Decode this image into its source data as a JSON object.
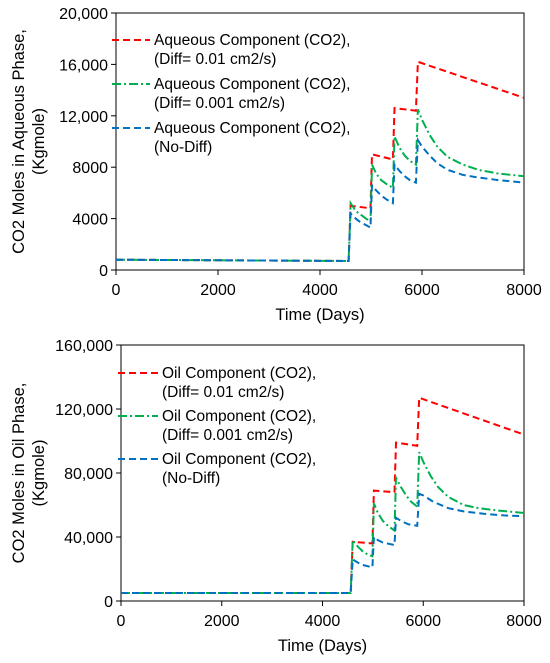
{
  "chart_data": [
    {
      "type": "line",
      "xlabel": "Time (Days)",
      "ylabel": [
        "CO2 Moles in Aqueous Phase,",
        "(Kgmole)"
      ],
      "xlim": [
        0,
        8000
      ],
      "ylim": [
        0,
        20000
      ],
      "xticks": [
        0,
        2000,
        4000,
        6000,
        8000
      ],
      "xtick_labels": [
        "0",
        "2000",
        "4000",
        "6000",
        "8000"
      ],
      "yticks": [
        0,
        4000,
        8000,
        12000,
        16000,
        20000
      ],
      "ytick_labels": [
        "0",
        "4000",
        "8000",
        "12,000",
        "16,000",
        "20,000"
      ],
      "grid": false,
      "legend_position": "top-center",
      "series": [
        {
          "name": [
            "Aqueous Component (CO2),",
            "(Diff= 0.01 cm2/s)"
          ],
          "color": "#ff0000",
          "points": [
            [
              0,
              800
            ],
            [
              4560,
              700
            ],
            [
              4600,
              5000
            ],
            [
              4990,
              4800
            ],
            [
              5020,
              9000
            ],
            [
              5430,
              8600
            ],
            [
              5460,
              12600
            ],
            [
              5880,
              12400
            ],
            [
              5920,
              16200
            ],
            [
              8000,
              13400
            ]
          ]
        },
        {
          "name": [
            "Aqueous Component (CO2),",
            "(Diff= 0.001 cm2/s)"
          ],
          "color": "#00b050",
          "points": [
            [
              0,
              800
            ],
            [
              4560,
              700
            ],
            [
              4600,
              5200
            ],
            [
              4700,
              4600
            ],
            [
              4800,
              4300
            ],
            [
              4900,
              4000
            ],
            [
              4990,
              3800
            ],
            [
              5020,
              8200
            ],
            [
              5100,
              7500
            ],
            [
              5200,
              7000
            ],
            [
              5300,
              6700
            ],
            [
              5430,
              6400
            ],
            [
              5460,
              10400
            ],
            [
              5560,
              9500
            ],
            [
              5660,
              8900
            ],
            [
              5760,
              8500
            ],
            [
              5880,
              8200
            ],
            [
              5920,
              12500
            ],
            [
              6000,
              11700
            ],
            [
              6150,
              10500
            ],
            [
              6300,
              9600
            ],
            [
              6500,
              8800
            ],
            [
              6800,
              8200
            ],
            [
              7100,
              7800
            ],
            [
              7500,
              7500
            ],
            [
              8000,
              7300
            ]
          ]
        },
        {
          "name": [
            "Aqueous Component (CO2),",
            "(No-Diff)"
          ],
          "color": "#0070c0",
          "points": [
            [
              0,
              800
            ],
            [
              4560,
              700
            ],
            [
              4600,
              4400
            ],
            [
              4700,
              4000
            ],
            [
              4800,
              3700
            ],
            [
              4900,
              3500
            ],
            [
              4990,
              3300
            ],
            [
              5020,
              6600
            ],
            [
              5100,
              6200
            ],
            [
              5200,
              5800
            ],
            [
              5300,
              5500
            ],
            [
              5430,
              5200
            ],
            [
              5460,
              8200
            ],
            [
              5560,
              7700
            ],
            [
              5660,
              7300
            ],
            [
              5760,
              7000
            ],
            [
              5880,
              6800
            ],
            [
              5920,
              10100
            ],
            [
              6000,
              9600
            ],
            [
              6150,
              8900
            ],
            [
              6300,
              8300
            ],
            [
              6500,
              7800
            ],
            [
              6800,
              7400
            ],
            [
              7100,
              7200
            ],
            [
              7500,
              7000
            ],
            [
              8000,
              6800
            ]
          ]
        }
      ]
    },
    {
      "type": "line",
      "xlabel": "Time (Days)",
      "ylabel": [
        "CO2 Moles in Oil Phase,",
        "(Kgmole)"
      ],
      "xlim": [
        0,
        8000
      ],
      "ylim": [
        0,
        160000
      ],
      "xticks": [
        0,
        2000,
        4000,
        6000,
        8000
      ],
      "xtick_labels": [
        "0",
        "2000",
        "4000",
        "6000",
        "8000"
      ],
      "yticks": [
        0,
        40000,
        80000,
        120000,
        160000
      ],
      "ytick_labels": [
        "0",
        "40,000",
        "80,000",
        "120,000",
        "160,000"
      ],
      "grid": false,
      "legend_position": "top-center",
      "series": [
        {
          "name": [
            "Oil Component (CO2),",
            "(Diff= 0.01 cm2/s)"
          ],
          "color": "#ff0000",
          "points": [
            [
              0,
              5000
            ],
            [
              4560,
              5000
            ],
            [
              4600,
              37000
            ],
            [
              4990,
              36000
            ],
            [
              5020,
              69000
            ],
            [
              5430,
              68000
            ],
            [
              5460,
              99000
            ],
            [
              5880,
              97000
            ],
            [
              5920,
              127000
            ],
            [
              8000,
              104000
            ]
          ]
        },
        {
          "name": [
            "Oil Component (CO2),",
            "(Diff= 0.001 cm2/s)"
          ],
          "color": "#00b050",
          "points": [
            [
              0,
              5000
            ],
            [
              4560,
              5000
            ],
            [
              4600,
              38000
            ],
            [
              4700,
              34000
            ],
            [
              4800,
              31000
            ],
            [
              4900,
              29000
            ],
            [
              4990,
              28000
            ],
            [
              5020,
              61000
            ],
            [
              5100,
              55000
            ],
            [
              5200,
              50000
            ],
            [
              5300,
              47000
            ],
            [
              5430,
              44000
            ],
            [
              5460,
              77000
            ],
            [
              5560,
              71000
            ],
            [
              5660,
              66000
            ],
            [
              5760,
              62000
            ],
            [
              5880,
              59000
            ],
            [
              5920,
              93000
            ],
            [
              6000,
              87000
            ],
            [
              6150,
              78000
            ],
            [
              6300,
              71000
            ],
            [
              6500,
              65000
            ],
            [
              6800,
              60000
            ],
            [
              7100,
              58000
            ],
            [
              7500,
              56500
            ],
            [
              8000,
              55000
            ]
          ]
        },
        {
          "name": [
            "Oil Component (CO2),",
            "(No-Diff)"
          ],
          "color": "#0070c0",
          "points": [
            [
              0,
              5000
            ],
            [
              4560,
              5000
            ],
            [
              4600,
              26000
            ],
            [
              4700,
              24000
            ],
            [
              4800,
              22500
            ],
            [
              4990,
              21000
            ],
            [
              5020,
              40000
            ],
            [
              5100,
              38000
            ],
            [
              5200,
              36500
            ],
            [
              5430,
              35000
            ],
            [
              5460,
              52000
            ],
            [
              5560,
              50000
            ],
            [
              5700,
              48000
            ],
            [
              5880,
              47000
            ],
            [
              5920,
              67000
            ],
            [
              6000,
              66000
            ],
            [
              6200,
              62000
            ],
            [
              6500,
              58000
            ],
            [
              6800,
              56000
            ],
            [
              7200,
              54500
            ],
            [
              7600,
              53500
            ],
            [
              8000,
              53000
            ]
          ]
        }
      ]
    }
  ]
}
